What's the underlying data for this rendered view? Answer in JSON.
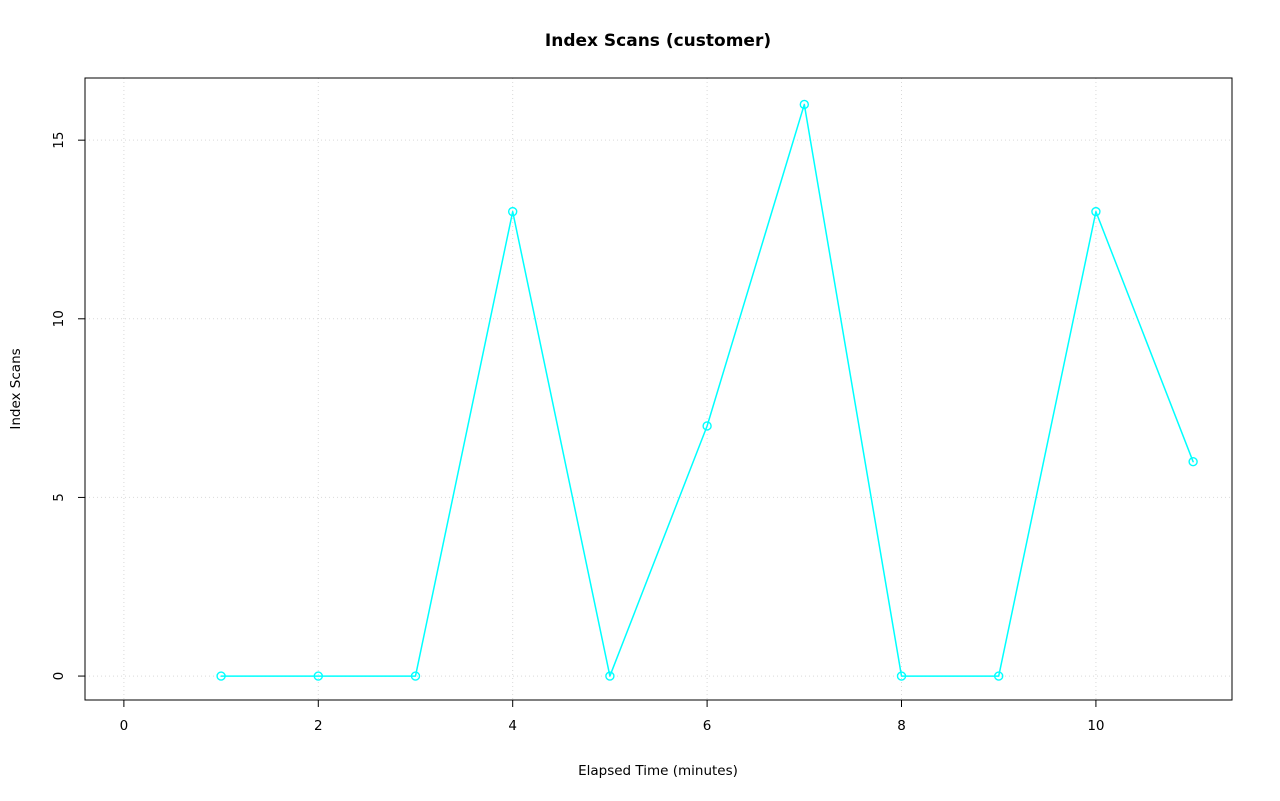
{
  "chart_data": {
    "type": "line",
    "title": "Index Scans (customer)",
    "xlabel": "Elapsed Time (minutes)",
    "ylabel": "Index Scans",
    "x": [
      1,
      2,
      3,
      4,
      5,
      6,
      7,
      8,
      9,
      10,
      11
    ],
    "y": [
      0,
      0,
      0,
      13,
      0,
      7,
      16,
      0,
      0,
      13,
      6
    ],
    "xticks": [
      0,
      2,
      4,
      6,
      8,
      10
    ],
    "yticks": [
      0,
      5,
      10,
      15
    ],
    "xlim": [
      -0.4,
      11.4
    ],
    "ylim": [
      -0.67,
      16.74
    ],
    "grid": true,
    "grid_style": "dotted",
    "legend": "none",
    "marker": "open-circle",
    "line_color": "#00ffff",
    "grid_color": "#d9d9d9",
    "axis_color": "#000000",
    "background": "#ffffff"
  }
}
